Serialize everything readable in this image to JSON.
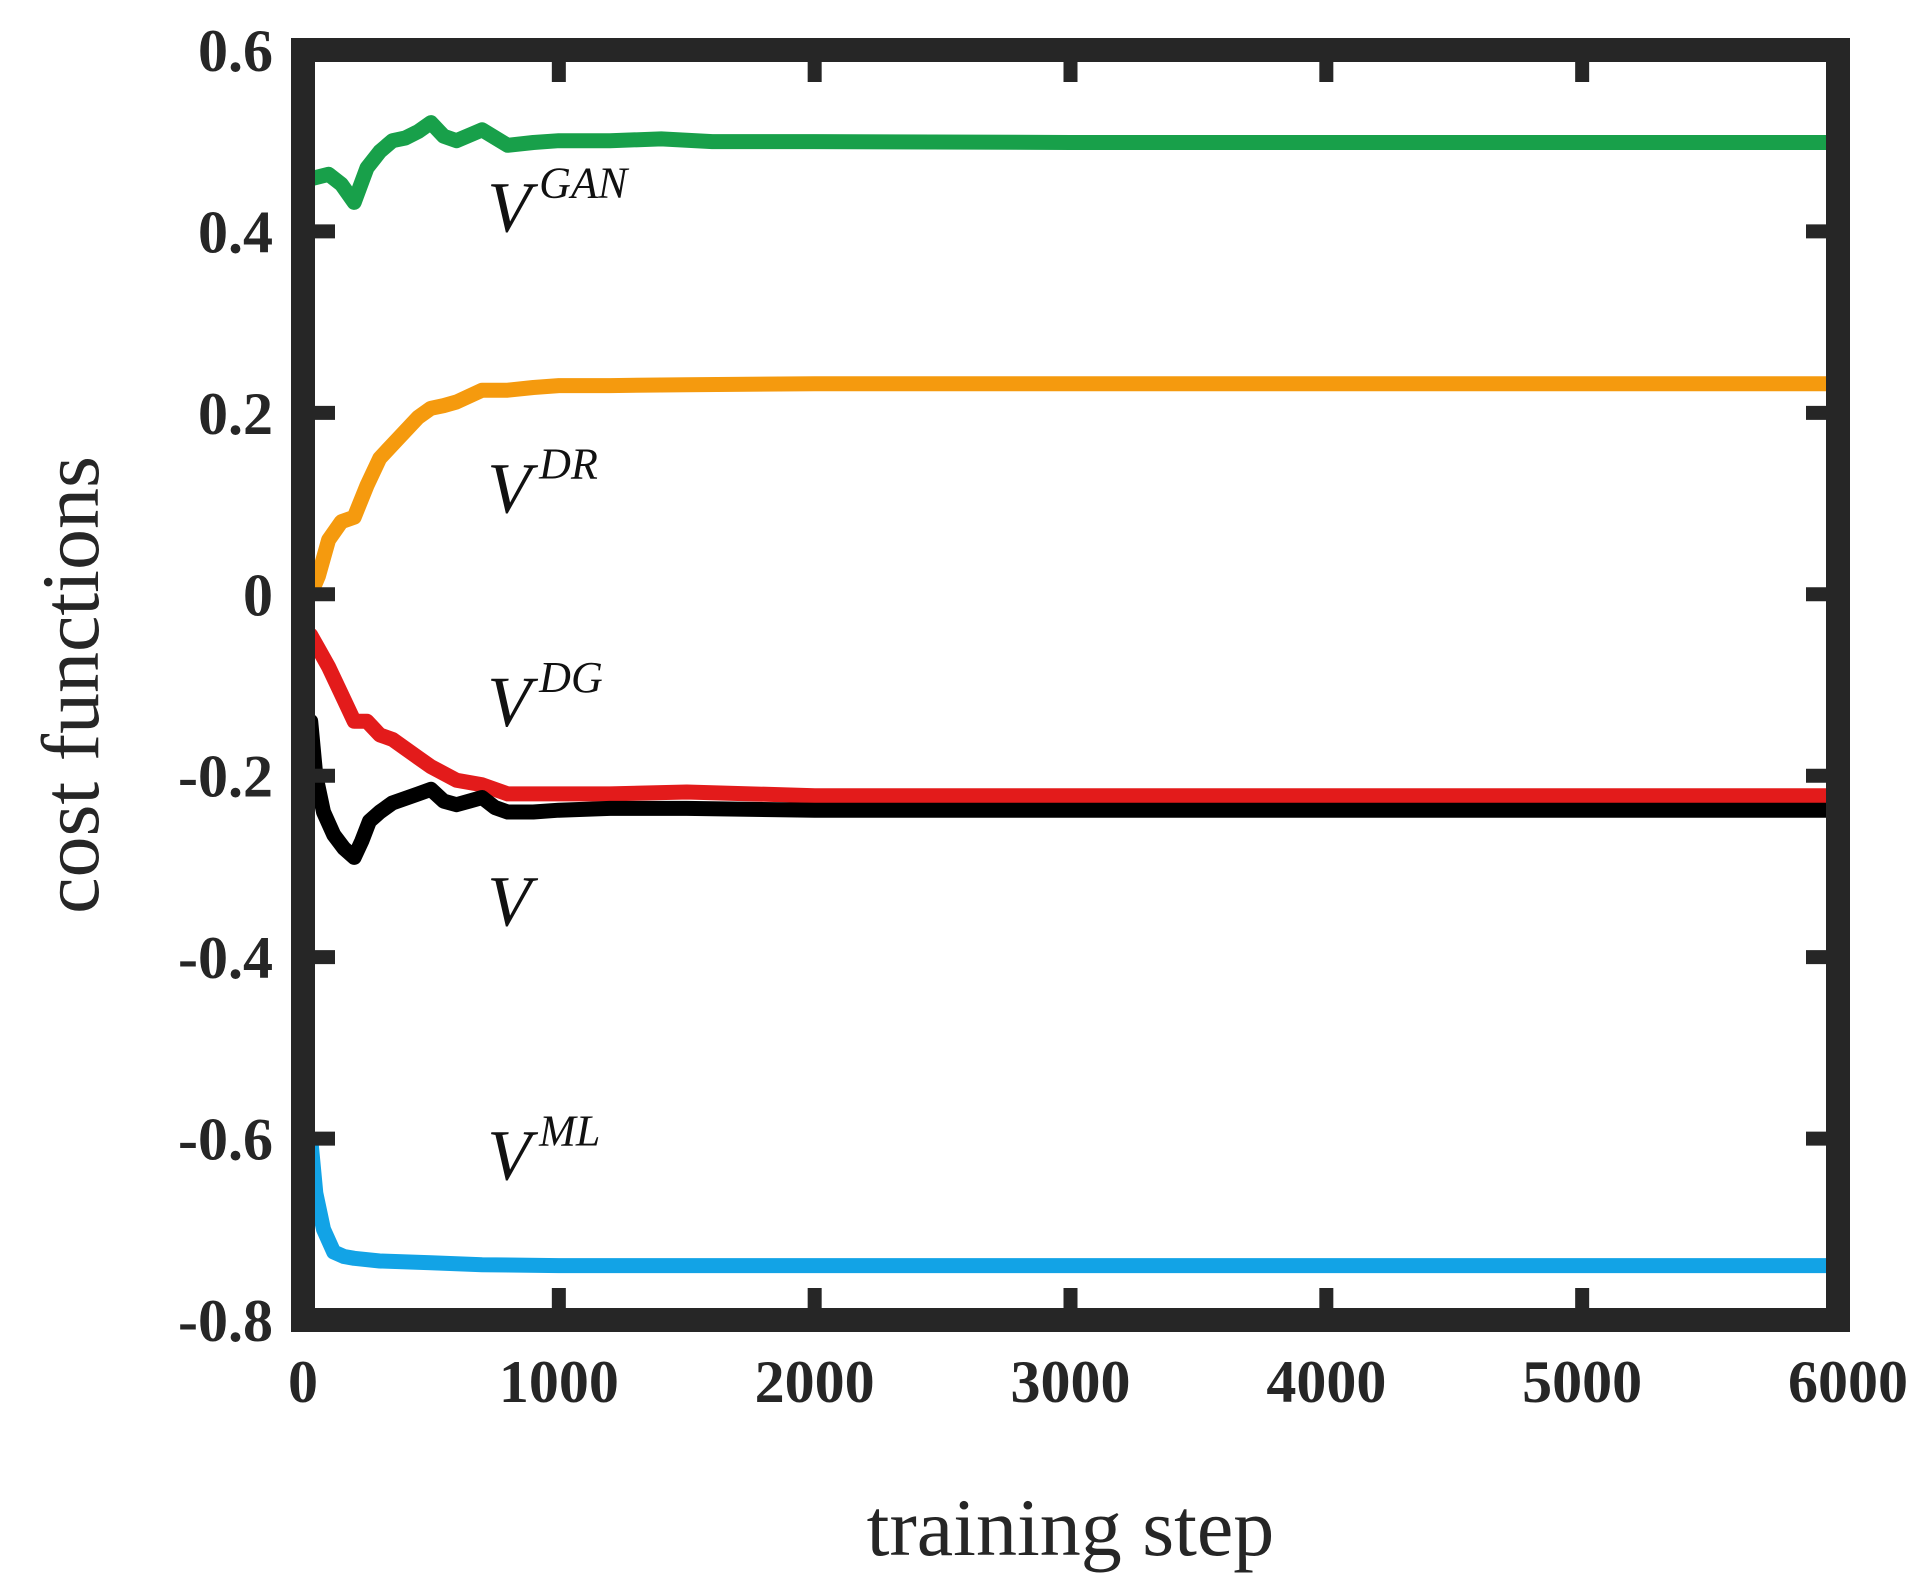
{
  "chart_data": {
    "type": "line",
    "title": "",
    "xlabel": "training step",
    "ylabel": "cost functions",
    "xlim": [
      0,
      6000
    ],
    "ylim": [
      -0.8,
      0.6
    ],
    "xticks": [
      0,
      1000,
      2000,
      3000,
      4000,
      5000,
      6000
    ],
    "xtick_labels": [
      "0",
      "1000",
      "2000",
      "3000",
      "4000",
      "5000",
      "6000"
    ],
    "yticks": [
      0.6,
      0.4,
      0.2,
      0,
      -0.2,
      -0.4,
      -0.6,
      -0.8
    ],
    "ytick_labels": [
      "0.6",
      "0.4",
      "0.2",
      "0",
      "-0.2",
      "-0.4",
      "-0.6",
      "-0.8"
    ],
    "grid": false,
    "series": [
      {
        "name": "V^GAN",
        "base": "V",
        "sup": "GAN",
        "color": "#18a04a",
        "label_at": [
          720,
          0.4
        ],
        "x": [
          30,
          100,
          150,
          200,
          250,
          300,
          350,
          400,
          450,
          500,
          550,
          600,
          700,
          800,
          900,
          1000,
          1200,
          1400,
          1600,
          2000,
          3000,
          4000,
          5000,
          6000
        ],
        "y": [
          0.458,
          0.463,
          0.452,
          0.432,
          0.47,
          0.488,
          0.5,
          0.503,
          0.51,
          0.52,
          0.505,
          0.5,
          0.512,
          0.495,
          0.498,
          0.5,
          0.5,
          0.502,
          0.499,
          0.499,
          0.498,
          0.498,
          0.498,
          0.498
        ]
      },
      {
        "name": "V^DR",
        "base": "V",
        "sup": "DR",
        "color": "#f59a0e",
        "label_at": [
          720,
          0.09
        ],
        "x": [
          30,
          60,
          100,
          150,
          200,
          250,
          300,
          350,
          400,
          450,
          500,
          550,
          600,
          700,
          800,
          900,
          1000,
          1200,
          1500,
          2000,
          3000,
          4000,
          5000,
          6000
        ],
        "y": [
          0.0,
          0.02,
          0.06,
          0.08,
          0.085,
          0.12,
          0.15,
          0.165,
          0.18,
          0.195,
          0.205,
          0.208,
          0.212,
          0.225,
          0.225,
          0.228,
          0.23,
          0.23,
          0.231,
          0.232,
          0.232,
          0.232,
          0.232,
          0.232
        ]
      },
      {
        "name": "V^DG",
        "base": "V",
        "sup": "DG",
        "color": "#e31b1b",
        "label_at": [
          720,
          -0.145
        ],
        "x": [
          30,
          60,
          100,
          150,
          200,
          250,
          300,
          350,
          400,
          450,
          500,
          600,
          700,
          800,
          900,
          1000,
          1200,
          1500,
          2000,
          3000,
          4000,
          5000,
          6000
        ],
        "y": [
          -0.045,
          -0.06,
          -0.08,
          -0.11,
          -0.14,
          -0.14,
          -0.155,
          -0.16,
          -0.17,
          -0.18,
          -0.19,
          -0.205,
          -0.21,
          -0.22,
          -0.22,
          -0.22,
          -0.22,
          -0.218,
          -0.222,
          -0.222,
          -0.222,
          -0.222,
          -0.222
        ]
      },
      {
        "name": "V",
        "base": "V",
        "sup": "",
        "color": "#000000",
        "label_at": [
          720,
          -0.365
        ],
        "x": [
          30,
          50,
          80,
          120,
          160,
          200,
          230,
          260,
          300,
          350,
          400,
          450,
          500,
          550,
          600,
          650,
          700,
          750,
          800,
          900,
          1000,
          1200,
          1500,
          2000,
          3000,
          4000,
          5000,
          6000
        ],
        "y": [
          -0.14,
          -0.2,
          -0.24,
          -0.265,
          -0.28,
          -0.29,
          -0.272,
          -0.25,
          -0.24,
          -0.23,
          -0.225,
          -0.22,
          -0.215,
          -0.228,
          -0.232,
          -0.228,
          -0.224,
          -0.235,
          -0.24,
          -0.24,
          -0.238,
          -0.236,
          -0.236,
          -0.238,
          -0.238,
          -0.238,
          -0.238,
          -0.238
        ]
      },
      {
        "name": "V^ML",
        "base": "V",
        "sup": "ML",
        "color": "#12a3e6",
        "label_at": [
          720,
          -0.645
        ],
        "x": [
          30,
          50,
          80,
          120,
          160,
          200,
          300,
          500,
          700,
          1000,
          2000,
          3000,
          4000,
          5000,
          6000
        ],
        "y": [
          -0.6,
          -0.66,
          -0.7,
          -0.725,
          -0.73,
          -0.732,
          -0.735,
          -0.737,
          -0.739,
          -0.74,
          -0.74,
          -0.74,
          -0.74,
          -0.74,
          -0.74
        ]
      }
    ]
  }
}
